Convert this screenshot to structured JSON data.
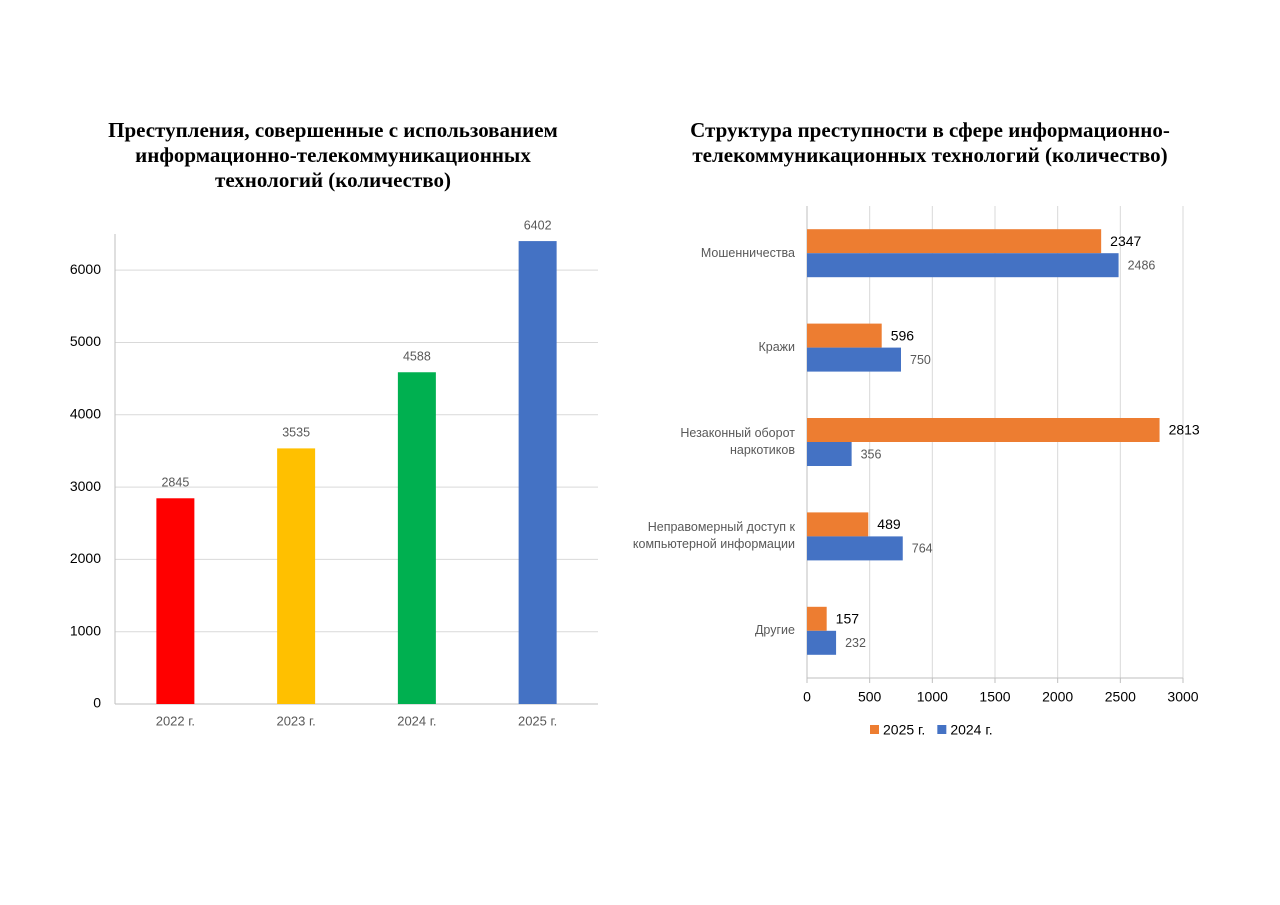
{
  "chart_data": [
    {
      "type": "bar",
      "title": "Преступления, совершенные с использованием информационно-телекоммуникационных технологий (количество)",
      "categories": [
        "2022 г.",
        "2023 г.",
        "2024 г.",
        "2025 г."
      ],
      "values": [
        2845,
        3535,
        4588,
        6402
      ],
      "colors": [
        "#ff0000",
        "#ffc000",
        "#00b050",
        "#4472c4"
      ],
      "ylim": [
        0,
        6500
      ],
      "yticks": [
        0,
        1000,
        2000,
        3000,
        4000,
        5000,
        6000
      ],
      "grid": true
    },
    {
      "type": "barh",
      "title": "Структура преступности в сфере информационно-телекоммуникационных технологий (количество)",
      "categories": [
        "Мошенничества",
        "Кражи",
        "Незаконный оборот наркотиков",
        "Неправомерный доступ к компьютерной информации",
        "Другие"
      ],
      "series": [
        {
          "name": "2025 г.",
          "color": "#ed7d31",
          "values": [
            2347,
            596,
            2813,
            489,
            157
          ]
        },
        {
          "name": "2024 г.",
          "color": "#4472c4",
          "values": [
            2486,
            750,
            356,
            764,
            232
          ]
        }
      ],
      "xlim": [
        0,
        3000
      ],
      "xticks": [
        0,
        500,
        1000,
        1500,
        2000,
        2500,
        3000
      ],
      "grid": true,
      "legend": "bottom"
    }
  ]
}
